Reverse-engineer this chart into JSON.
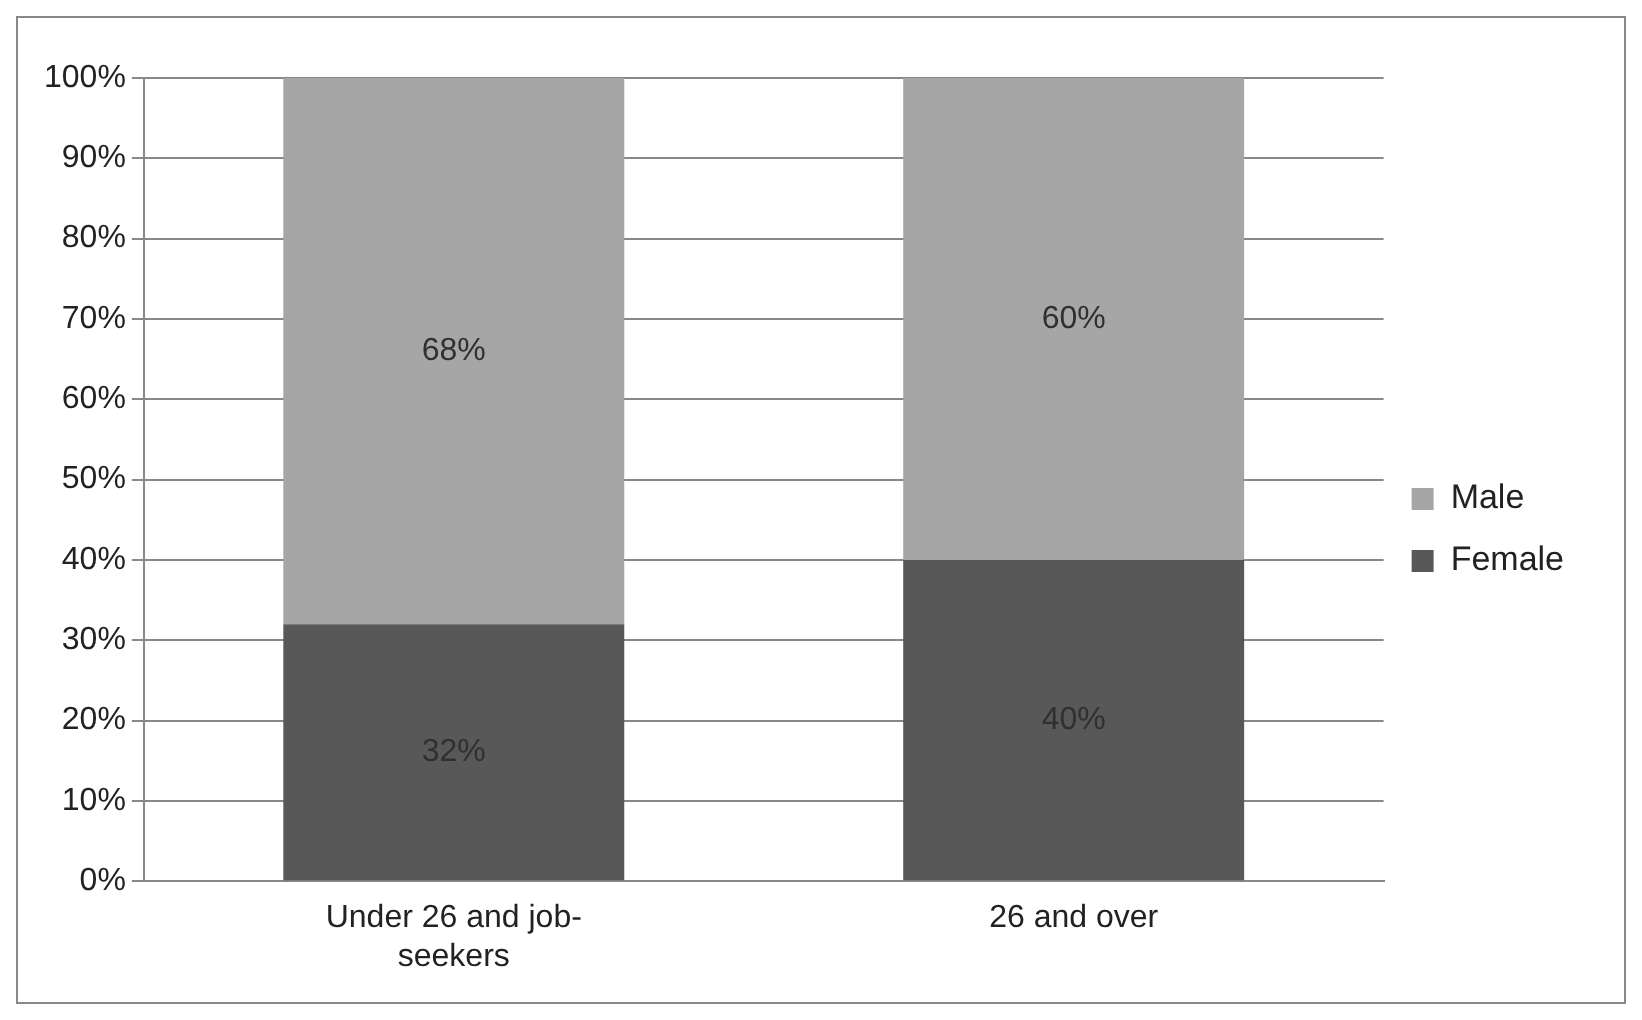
{
  "chart_data": {
    "type": "bar",
    "stacked": true,
    "categories": [
      "Under 26 and job-seekers",
      "26 and over"
    ],
    "series": [
      {
        "name": "Female",
        "color": "#585858",
        "values": [
          32,
          40
        ],
        "value_labels": [
          "32%",
          "40%"
        ]
      },
      {
        "name": "Male",
        "color": "#a6a6a6",
        "values": [
          68,
          60
        ],
        "value_labels": [
          "68%",
          "60%"
        ]
      }
    ],
    "ylim": [
      0,
      100
    ],
    "yticks": [
      {
        "value": 0,
        "label": "0%"
      },
      {
        "value": 10,
        "label": "10%"
      },
      {
        "value": 20,
        "label": "20%"
      },
      {
        "value": 30,
        "label": "30%"
      },
      {
        "value": 40,
        "label": "40%"
      },
      {
        "value": 50,
        "label": "50%"
      },
      {
        "value": 60,
        "label": "60%"
      },
      {
        "value": 70,
        "label": "70%"
      },
      {
        "value": 80,
        "label": "80%"
      },
      {
        "value": 90,
        "label": "90%"
      },
      {
        "value": 100,
        "label": "100%"
      }
    ],
    "grid": "y",
    "legend": "right"
  }
}
